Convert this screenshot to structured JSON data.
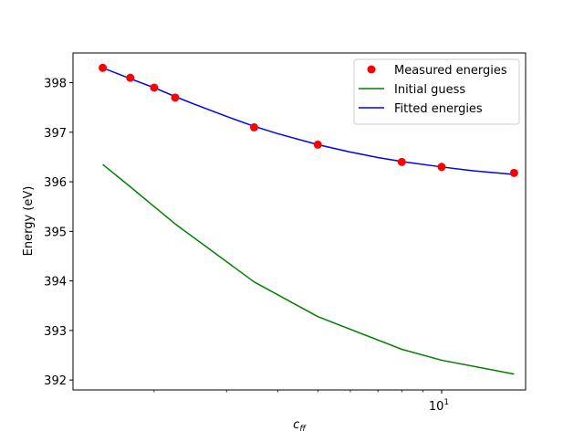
{
  "chart_data": {
    "type": "line",
    "xlabel_main": "c",
    "xlabel_sub": "ff",
    "ylabel": "Energy (eV)",
    "xscale": "log",
    "xlim": [
      1.27,
      16.0
    ],
    "ylim": [
      391.8,
      398.6
    ],
    "yticks": [
      392,
      393,
      394,
      395,
      396,
      397,
      398
    ],
    "xticks_major": [
      10
    ],
    "xtick_major_labels": [
      {
        "base": "10",
        "exp": "1"
      }
    ],
    "xticks_minor": [
      2,
      3,
      4,
      5,
      6,
      7,
      8,
      9
    ],
    "grid": false,
    "legend_position": "upper-right",
    "colors": {
      "measured": "#ff0000",
      "initial": "#008000",
      "fitted": "#0000ff"
    },
    "series": [
      {
        "name": "Measured energies",
        "kind": "scatter",
        "color": "#ff0000",
        "x": [
          1.5,
          1.75,
          2.0,
          2.25,
          3.5,
          5.0,
          8.0,
          10.0,
          15.0
        ],
        "y": [
          398.3,
          398.1,
          397.9,
          397.7,
          397.1,
          396.75,
          396.4,
          396.3,
          396.18
        ]
      },
      {
        "name": "Initial guess",
        "kind": "line",
        "color": "#008000",
        "x": [
          1.5,
          1.75,
          2.0,
          2.25,
          3.5,
          5.0,
          8.0,
          10.0,
          15.0
        ],
        "y": [
          396.35,
          395.9,
          395.5,
          395.15,
          393.98,
          393.28,
          392.62,
          392.4,
          392.12
        ]
      },
      {
        "name": "Fitted energies",
        "kind": "line",
        "color": "#0000ff",
        "x": [
          1.5,
          1.75,
          2.0,
          2.25,
          2.5,
          3.0,
          3.5,
          4.0,
          5.0,
          6.0,
          7.0,
          8.0,
          10.0,
          12.0,
          15.0
        ],
        "y": [
          398.3,
          398.08,
          397.9,
          397.72,
          397.57,
          397.32,
          397.12,
          396.97,
          396.75,
          396.6,
          396.49,
          396.41,
          396.3,
          396.22,
          396.15
        ]
      }
    ]
  }
}
